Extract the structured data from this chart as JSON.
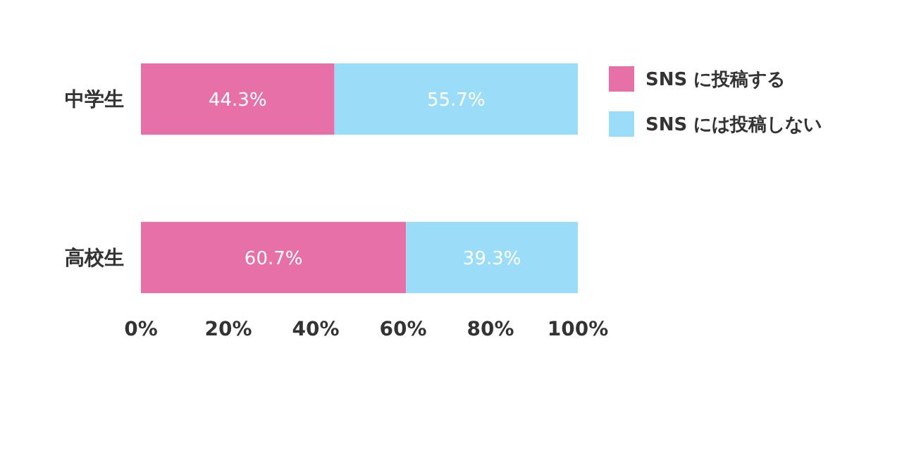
{
  "chart_data": {
    "type": "bar",
    "orientation": "horizontal",
    "stacked": true,
    "categories": [
      "中学生",
      "高校生"
    ],
    "series": [
      {
        "name": "SNS に投稿する",
        "color": "#e770a9",
        "values": [
          44.3,
          60.7
        ],
        "value_labels": [
          "44.3%",
          "60.7%"
        ]
      },
      {
        "name": "SNS には投稿しない",
        "color": "#9bdcf9",
        "values": [
          55.7,
          39.3
        ],
        "value_labels": [
          "55.7%",
          "39.3%"
        ]
      }
    ],
    "xlim": [
      0,
      100
    ],
    "xticks": [
      {
        "value": 0,
        "label": "0%"
      },
      {
        "value": 20,
        "label": "20%"
      },
      {
        "value": 40,
        "label": "40%"
      },
      {
        "value": 60,
        "label": "60%"
      },
      {
        "value": 80,
        "label": "80%"
      },
      {
        "value": 100,
        "label": "100%"
      }
    ],
    "grid": false,
    "legend": "right"
  }
}
